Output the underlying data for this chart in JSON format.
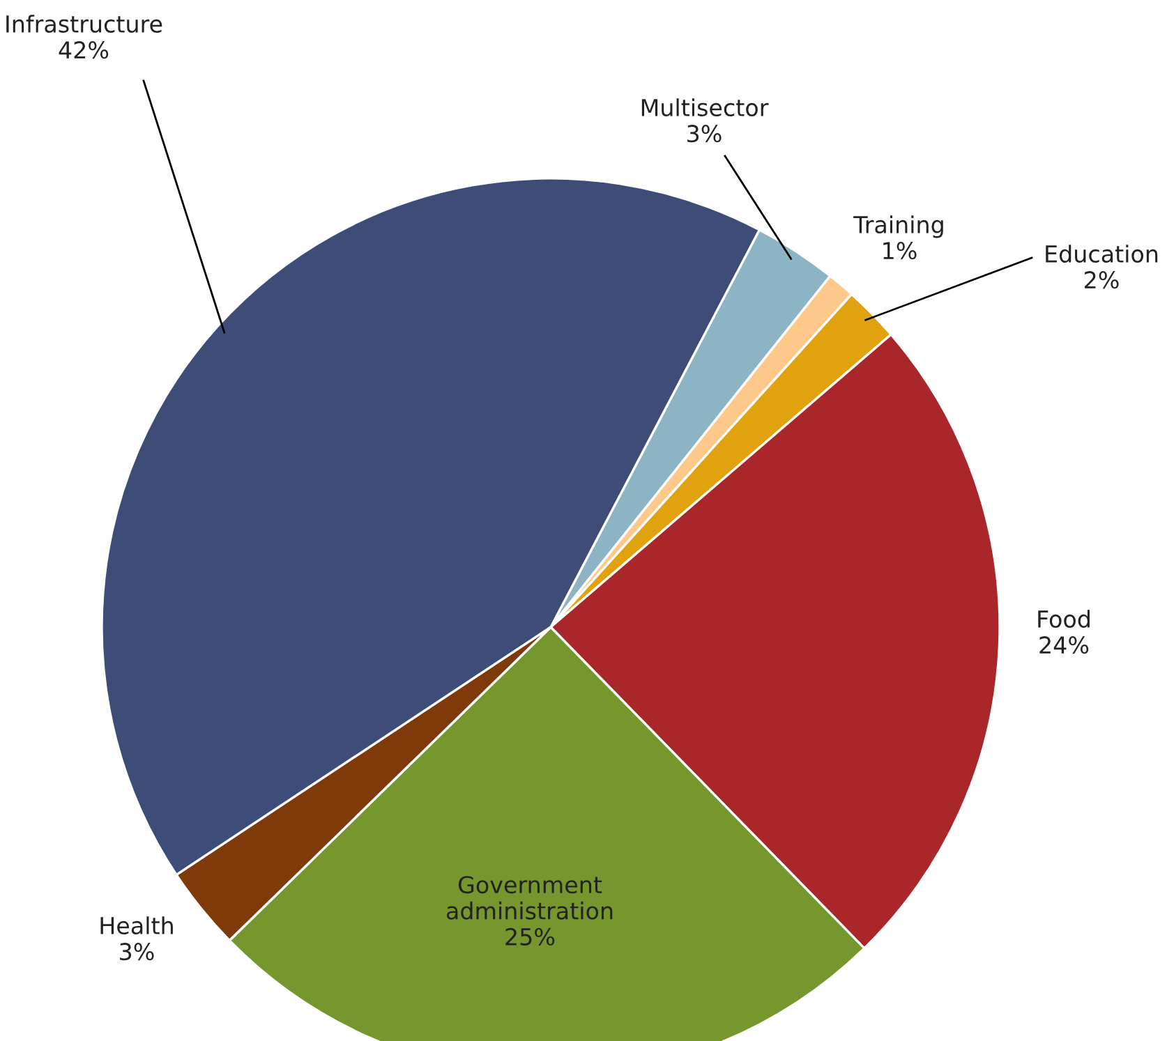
{
  "chart_data": {
    "type": "pie",
    "categories": [
      "Multisector",
      "Training",
      "Education",
      "Food",
      "Government\nadministration",
      "Health",
      "Infrastructure"
    ],
    "values": [
      3,
      1,
      2,
      24,
      25,
      3,
      42
    ],
    "value_labels": [
      "3%",
      "1%",
      "2%",
      "24%",
      "25%",
      "3%",
      "42%"
    ],
    "colors": [
      "#8db4c4",
      "#fcc98a",
      "#e0a30f",
      "#a9262a",
      "#76962e",
      "#7f3a0c",
      "#3d4d78"
    ],
    "legend": false
  }
}
